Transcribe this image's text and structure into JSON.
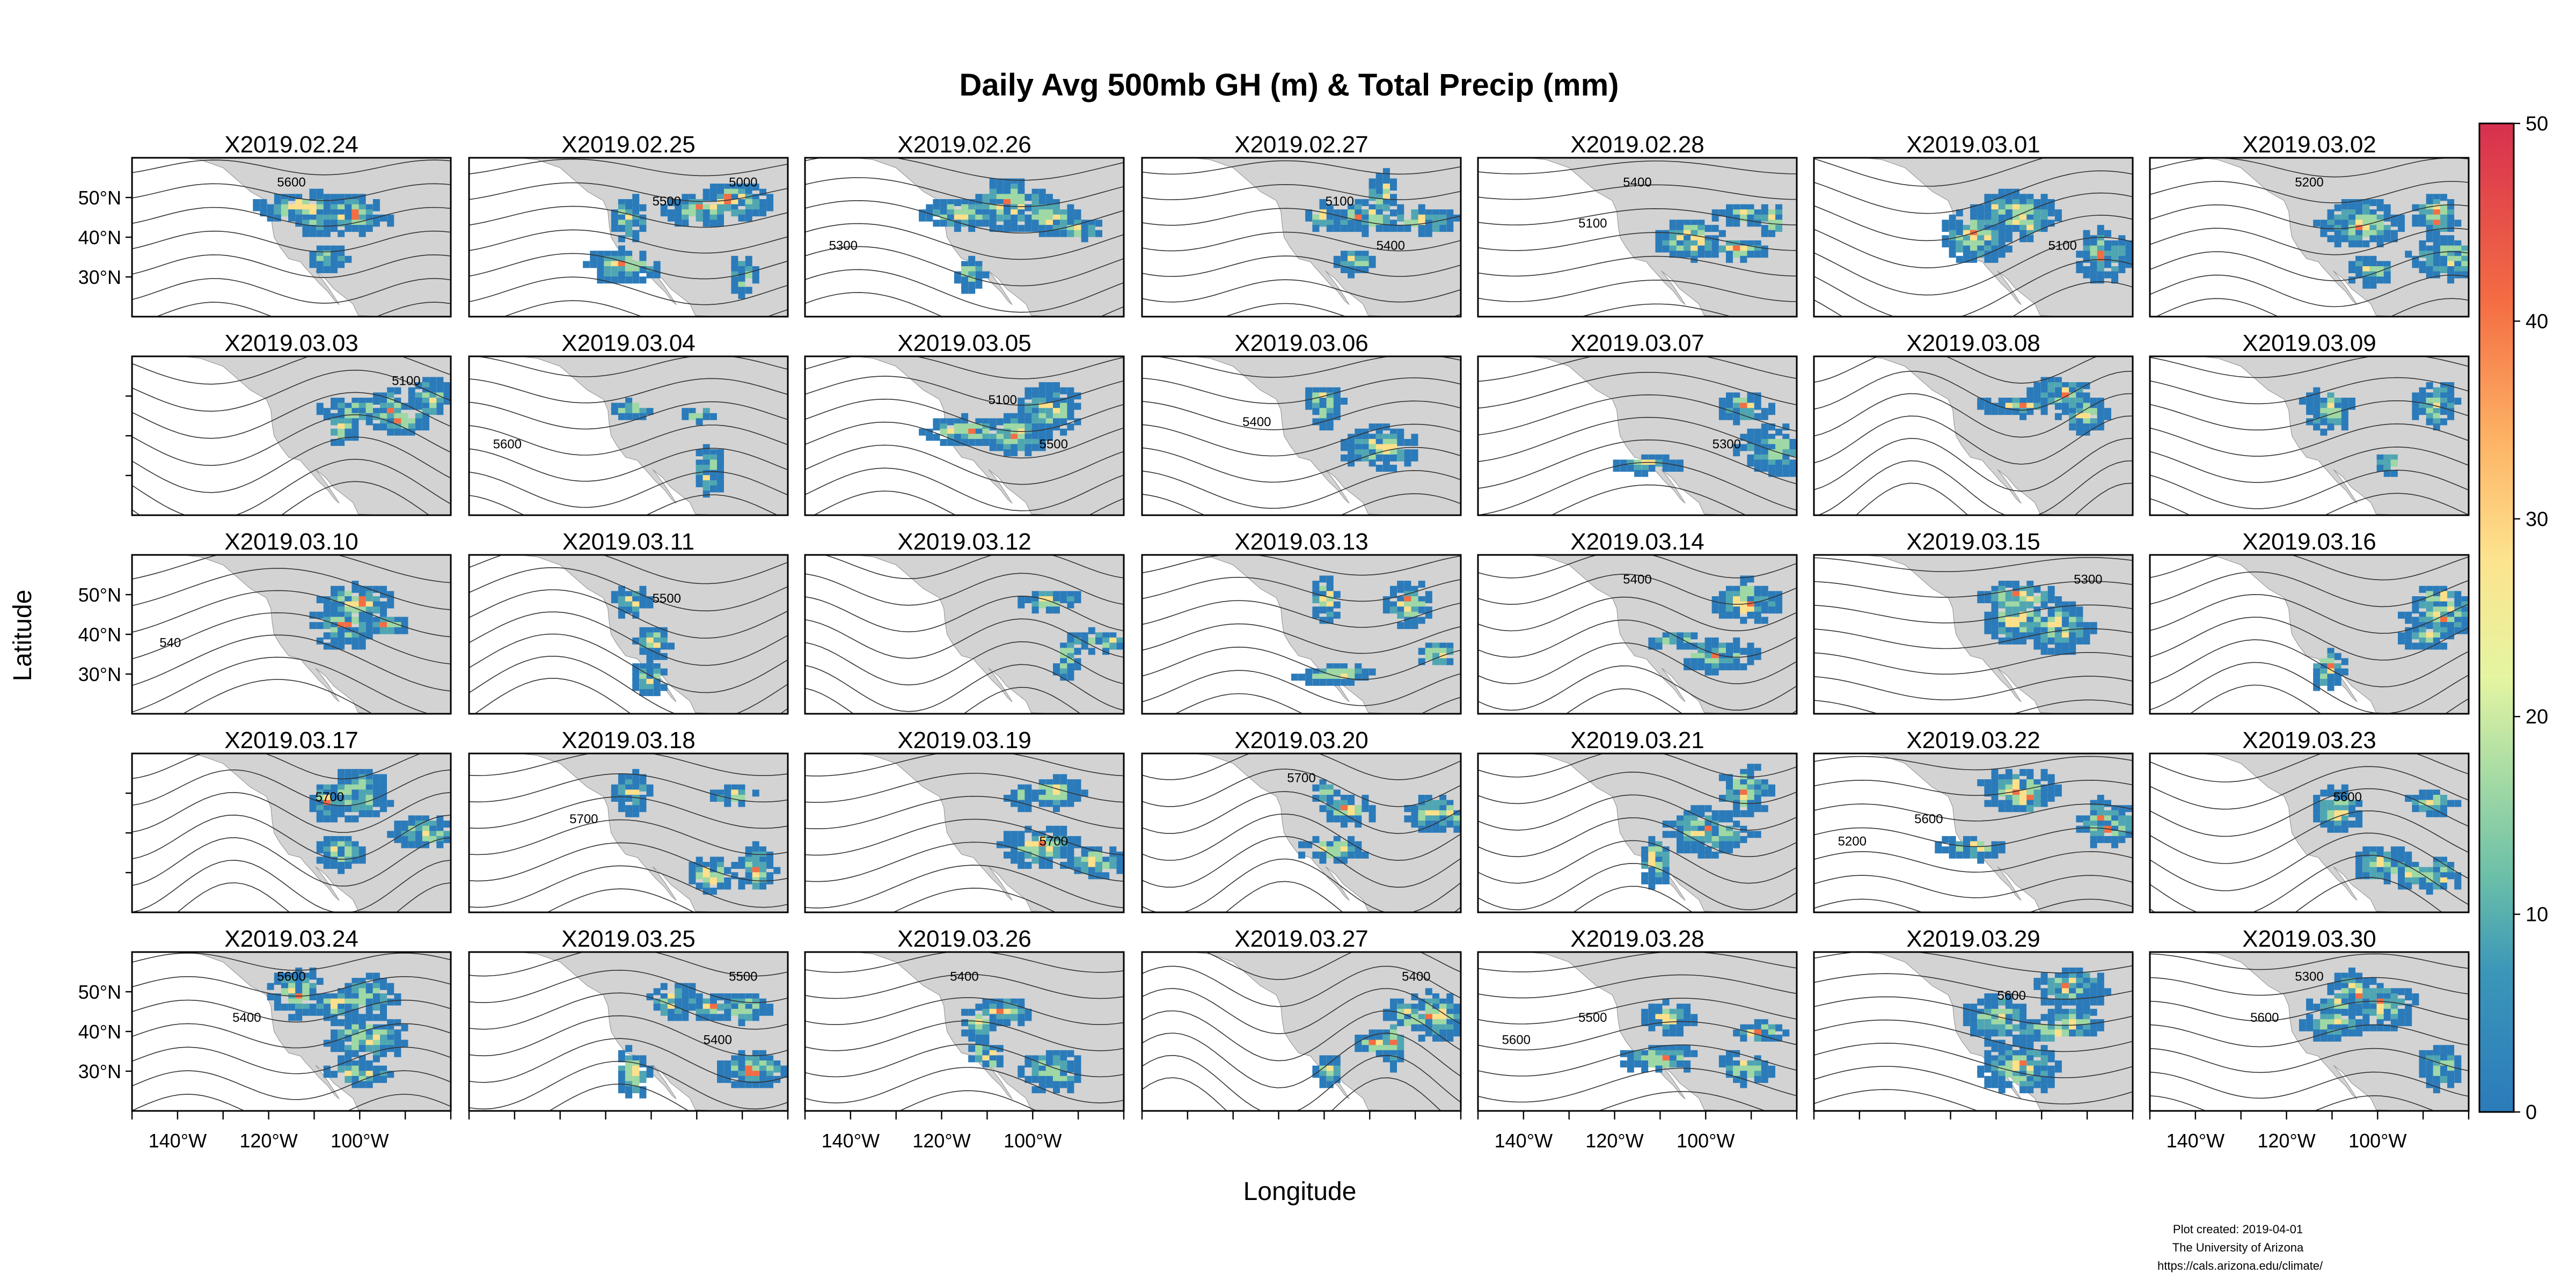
{
  "chart_data": {
    "type": "heatmap",
    "title": "Daily Avg 500mb GH (m) & Total Precip (mm)",
    "xlabel": "Longitude",
    "ylabel": "Latitude",
    "x_ticks": [
      "140°W",
      "120°W",
      "100°W"
    ],
    "y_ticks": [
      "50°N",
      "40°N",
      "30°N"
    ],
    "colorbar": {
      "min": 0,
      "max": 50,
      "ticks": [
        0,
        10,
        20,
        30,
        40,
        50
      ],
      "colors": [
        "#2b7bba",
        "#5fb3a9",
        "#9ed8a4",
        "#e5f5a1",
        "#fee08b",
        "#fdae61",
        "#f46d43",
        "#d7304f"
      ]
    },
    "panels": [
      {
        "label": "X2019.02.24",
        "contours": [
          "5600"
        ]
      },
      {
        "label": "X2019.02.25",
        "contours": [
          "5000",
          "5500"
        ]
      },
      {
        "label": "X2019.02.26",
        "contours": [
          "5300"
        ]
      },
      {
        "label": "X2019.02.27",
        "contours": [
          "5100",
          "5400"
        ]
      },
      {
        "label": "X2019.02.28",
        "contours": [
          "5100",
          "5400"
        ]
      },
      {
        "label": "X2019.03.01",
        "contours": [
          "5100"
        ]
      },
      {
        "label": "X2019.03.02",
        "contours": [
          "5200"
        ]
      },
      {
        "label": "X2019.03.03",
        "contours": [
          "5100"
        ]
      },
      {
        "label": "X2019.03.04",
        "contours": [
          "5600"
        ]
      },
      {
        "label": "X2019.03.05",
        "contours": [
          "5100",
          "5500"
        ]
      },
      {
        "label": "X2019.03.06",
        "contours": [
          "5400"
        ]
      },
      {
        "label": "X2019.03.07",
        "contours": [
          "5300"
        ]
      },
      {
        "label": "X2019.03.08",
        "contours": []
      },
      {
        "label": "X2019.03.09",
        "contours": []
      },
      {
        "label": "X2019.03.10",
        "contours": [
          "540"
        ]
      },
      {
        "label": "X2019.03.11",
        "contours": [
          "5500"
        ]
      },
      {
        "label": "X2019.03.12",
        "contours": []
      },
      {
        "label": "X2019.03.13",
        "contours": []
      },
      {
        "label": "X2019.03.14",
        "contours": [
          "5400"
        ]
      },
      {
        "label": "X2019.03.15",
        "contours": [
          "5300"
        ]
      },
      {
        "label": "X2019.03.16",
        "contours": []
      },
      {
        "label": "X2019.03.17",
        "contours": [
          "5700"
        ]
      },
      {
        "label": "X2019.03.18",
        "contours": [
          "5700"
        ]
      },
      {
        "label": "X2019.03.19",
        "contours": [
          "5700"
        ]
      },
      {
        "label": "X2019.03.20",
        "contours": [
          "5700"
        ]
      },
      {
        "label": "X2019.03.21",
        "contours": []
      },
      {
        "label": "X2019.03.22",
        "contours": [
          "5200",
          "5600"
        ]
      },
      {
        "label": "X2019.03.23",
        "contours": [
          "5600"
        ]
      },
      {
        "label": "X2019.03.24",
        "contours": [
          "5400",
          "5600"
        ]
      },
      {
        "label": "X2019.03.25",
        "contours": [
          "5400",
          "5500"
        ]
      },
      {
        "label": "X2019.03.26",
        "contours": [
          "5400"
        ]
      },
      {
        "label": "X2019.03.27",
        "contours": [
          "5400"
        ]
      },
      {
        "label": "X2019.03.28",
        "contours": [
          "5600",
          "5500"
        ]
      },
      {
        "label": "X2019.03.29",
        "contours": [
          "5600"
        ]
      },
      {
        "label": "X2019.03.30",
        "contours": [
          "5600",
          "5300"
        ]
      }
    ]
  },
  "footer": {
    "created": "Plot created: 2019-04-01",
    "org": "The University of Arizona",
    "url": "https://cals.arizona.edu/climate/"
  }
}
